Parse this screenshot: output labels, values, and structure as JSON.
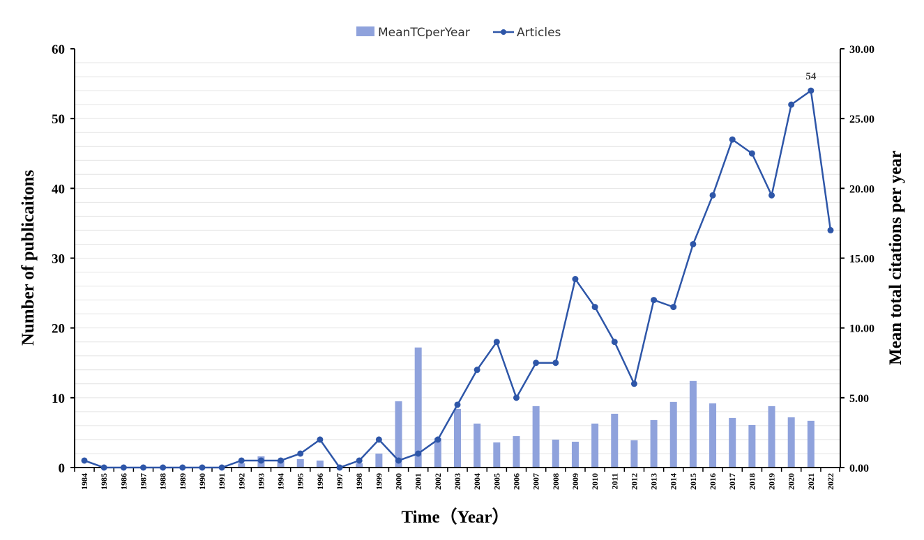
{
  "chart_data": {
    "type": "bar+line",
    "categories": [
      "1984",
      "1985",
      "1986",
      "1987",
      "1988",
      "1989",
      "1990",
      "1991",
      "1992",
      "1993",
      "1994",
      "1995",
      "1996",
      "1997",
      "1998",
      "1999",
      "2000",
      "2001",
      "2002",
      "2003",
      "2004",
      "2005",
      "2006",
      "2007",
      "2008",
      "2009",
      "2010",
      "2011",
      "2012",
      "2013",
      "2014",
      "2015",
      "2016",
      "2017",
      "2018",
      "2019",
      "2020",
      "2021",
      "2022"
    ],
    "series": [
      {
        "name": "MeanTCperYear",
        "type": "bar",
        "axis": "right",
        "color": "#8fa2dc",
        "values": [
          0,
          0,
          0,
          0,
          0,
          0,
          0,
          0,
          0.3,
          0.8,
          0.5,
          0.6,
          0.5,
          0,
          0.3,
          1.0,
          4.75,
          8.6,
          2.1,
          4.2,
          3.15,
          1.8,
          2.25,
          4.4,
          2.0,
          1.85,
          3.15,
          3.85,
          1.95,
          3.4,
          4.7,
          6.2,
          4.6,
          3.55,
          3.05,
          4.4,
          3.6,
          3.35,
          0
        ]
      },
      {
        "name": "Articles",
        "type": "line",
        "axis": "left",
        "color": "#2e56a8",
        "values": [
          1,
          0,
          0,
          0,
          0,
          0,
          0,
          0,
          1,
          1,
          1,
          2,
          4,
          0,
          1,
          4,
          1,
          2,
          4,
          9,
          14,
          18,
          10,
          15,
          15,
          27,
          23,
          18,
          12,
          24,
          23,
          32,
          39,
          47,
          45,
          39,
          52,
          54,
          34
        ]
      }
    ],
    "annotations": [
      {
        "category": "2021",
        "series": "Articles",
        "text": "54"
      }
    ],
    "xlabel": "Time（Year）",
    "ylabel": "Number of publicaitons",
    "ylabel_right": "Mean total citations per year",
    "ylim": [
      0,
      60
    ],
    "ylim_right": [
      0,
      30
    ],
    "yticks": [
      "0",
      "10",
      "20",
      "30",
      "40",
      "50",
      "60"
    ],
    "yticks_right": [
      "0.00",
      "5.00",
      "10.00",
      "15.00",
      "20.00",
      "25.00",
      "30.00"
    ],
    "legend": "top-center",
    "grid": true
  }
}
